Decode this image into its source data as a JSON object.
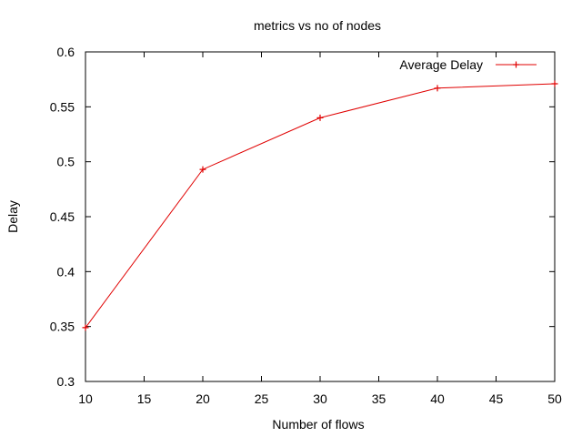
{
  "chart_data": {
    "type": "line",
    "title": "metrics vs no of nodes",
    "xlabel": "Number of flows",
    "ylabel": "Delay",
    "xlim": [
      10,
      50
    ],
    "ylim": [
      0.3,
      0.6
    ],
    "xticks": [
      "10",
      "15",
      "20",
      "25",
      "30",
      "35",
      "40",
      "45",
      "50"
    ],
    "yticks": [
      "0.3",
      "0.35",
      "0.4",
      "0.45",
      "0.5",
      "0.55",
      "0.6"
    ],
    "grid": false,
    "legend_position": "top-right",
    "series": [
      {
        "name": "Average Delay",
        "color": "#e00000",
        "marker": "plus",
        "x": [
          10,
          20,
          30,
          40,
          50
        ],
        "y": [
          0.349,
          0.493,
          0.54,
          0.567,
          0.571
        ]
      }
    ]
  }
}
